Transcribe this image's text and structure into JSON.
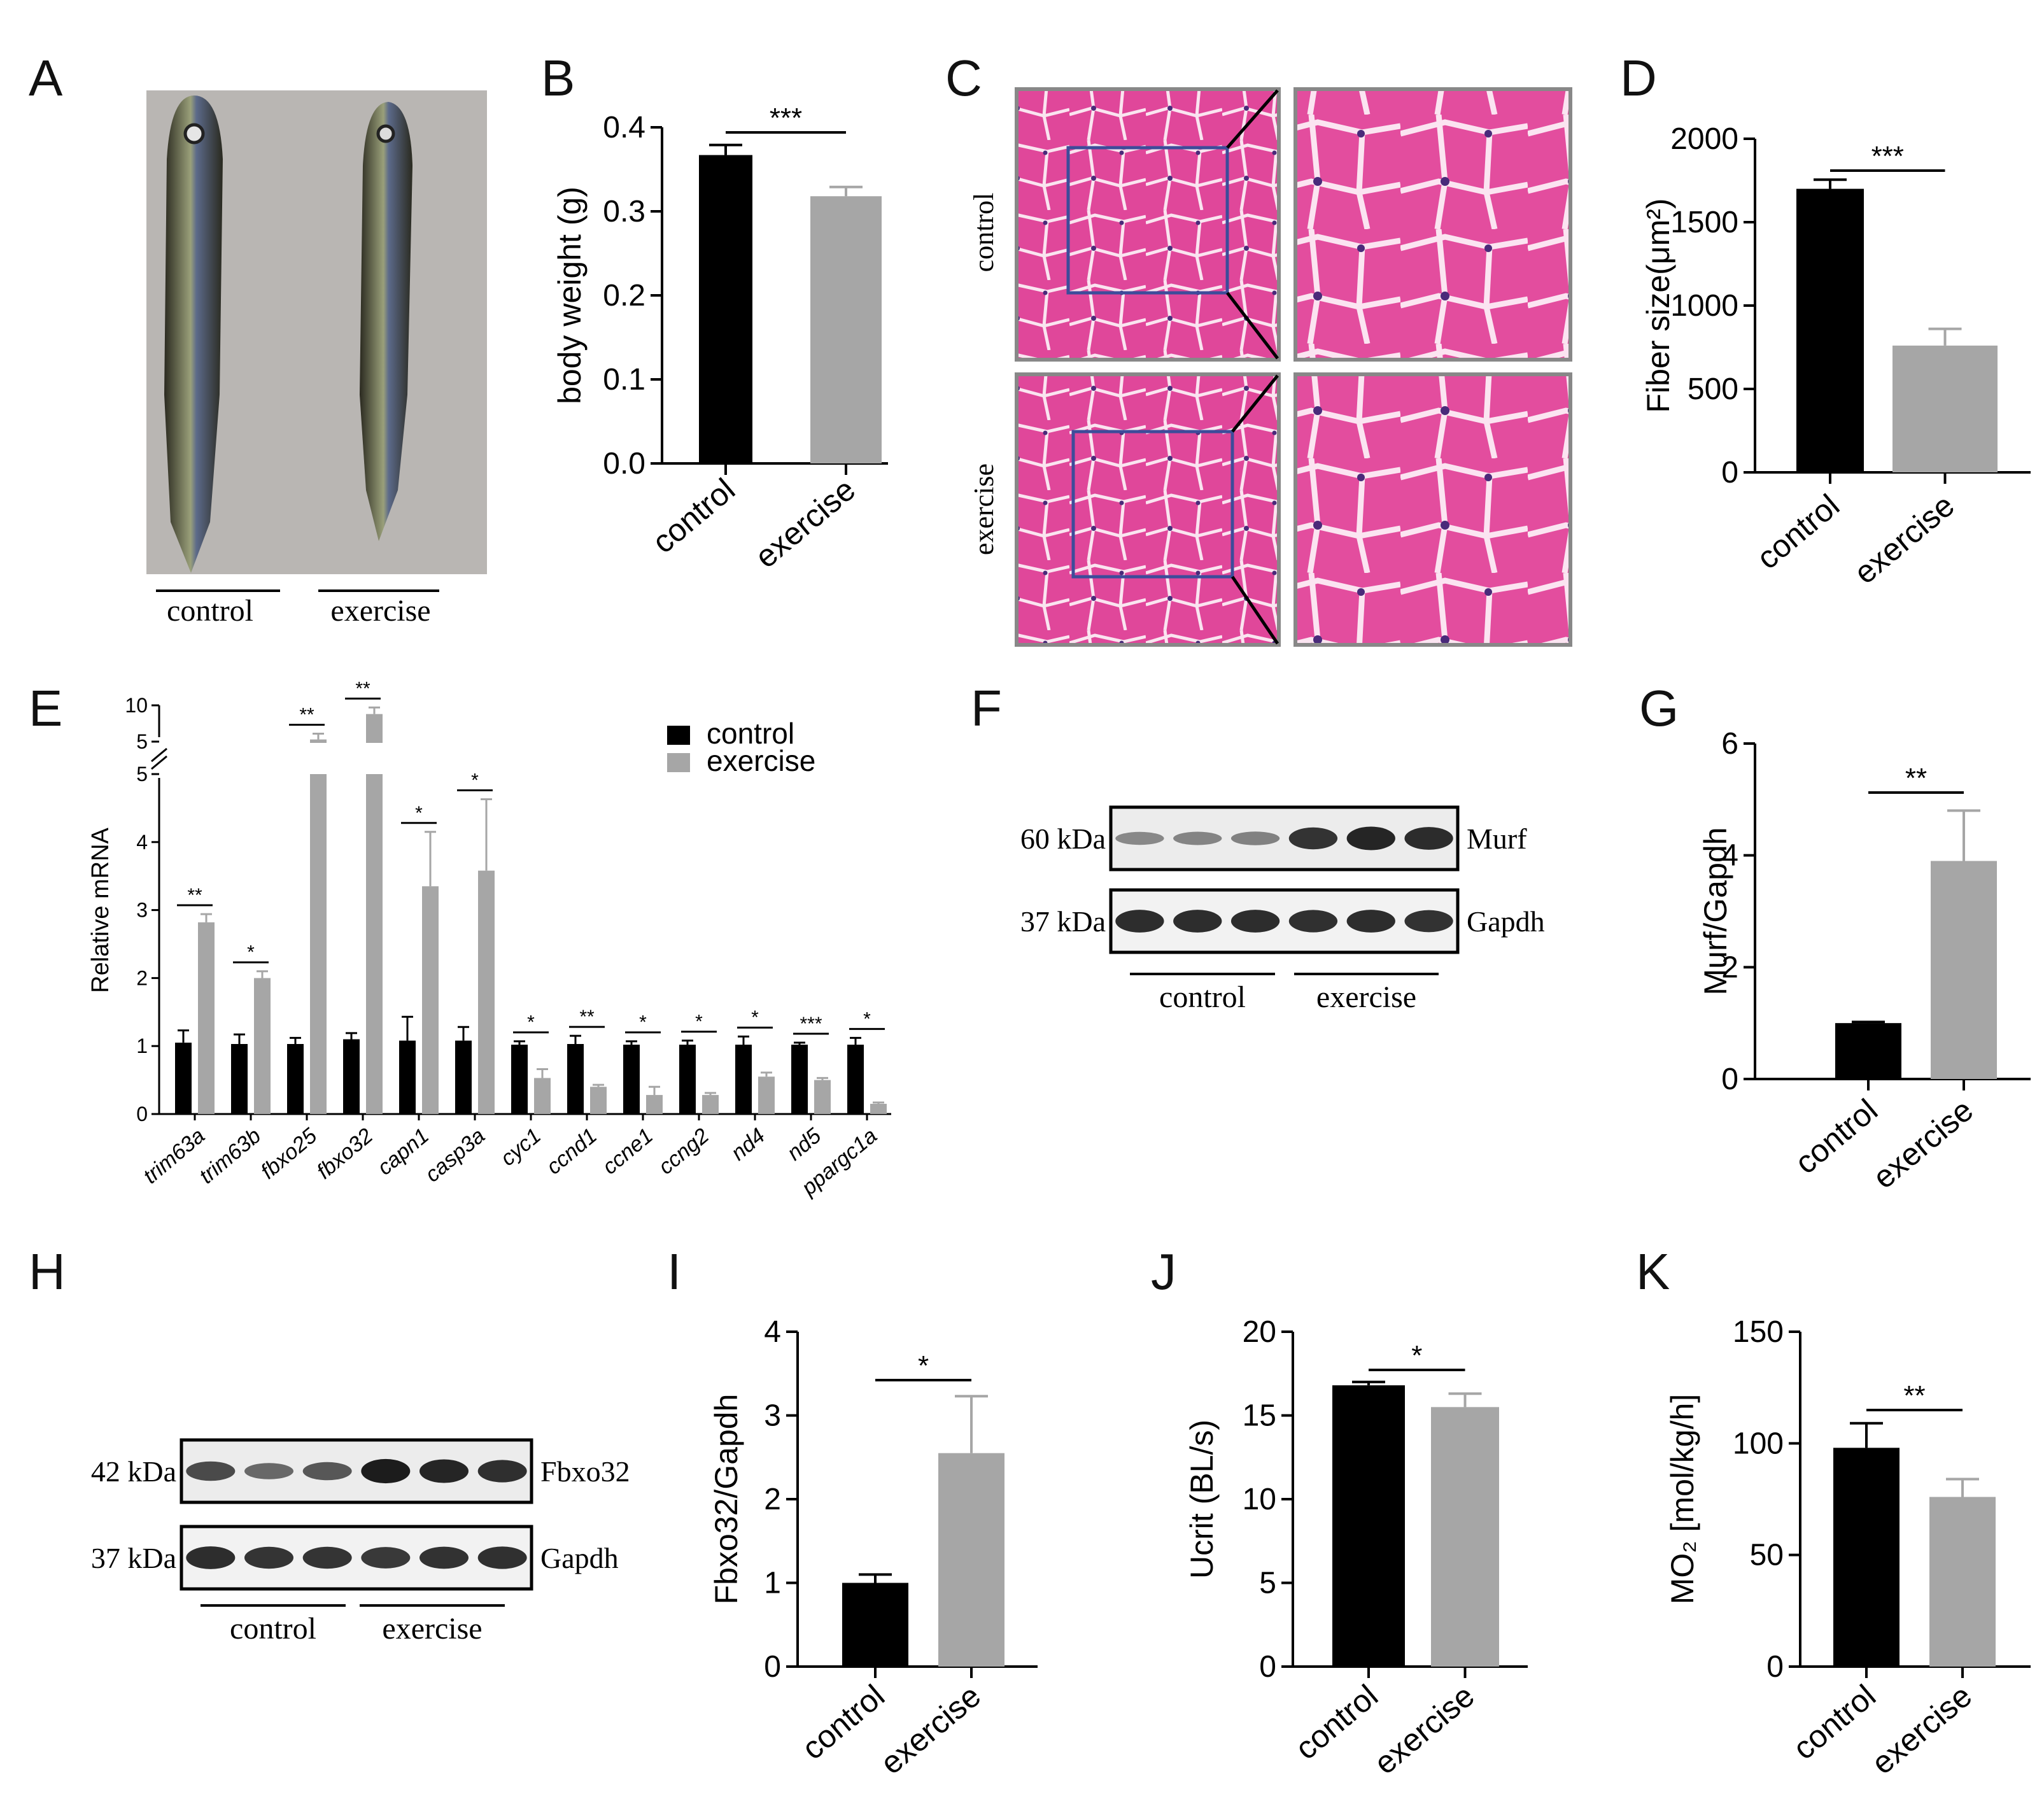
{
  "colors": {
    "control": "#000000",
    "exercise": "#a6a6a6",
    "he_pink": "#e0479a",
    "inset_box": "#3d4c9a"
  },
  "panel_letters": [
    "A",
    "B",
    "C",
    "D",
    "E",
    "F",
    "G",
    "H",
    "I",
    "J",
    "K"
  ],
  "panelA": {
    "labels": [
      "control",
      "exercise"
    ]
  },
  "panelC": {
    "rows": [
      "control",
      "exercise"
    ]
  },
  "blotF": {
    "markers": [
      "60 kDa",
      "37 kDa"
    ],
    "proteins": [
      "Murf",
      "Gapdh"
    ],
    "groups": [
      "control",
      "exercise"
    ],
    "bands_top": [
      0.3,
      0.32,
      0.34,
      0.85,
      0.95,
      0.9
    ],
    "bands_bottom": [
      0.9,
      0.9,
      0.9,
      0.88,
      0.9,
      0.86
    ]
  },
  "blotH": {
    "markers": [
      "42 kDa",
      "37 kDa"
    ],
    "proteins": [
      "Fbxo32",
      "Gapdh"
    ],
    "groups": [
      "control",
      "exercise"
    ],
    "bands_top": [
      0.7,
      0.5,
      0.62,
      1.0,
      0.95,
      0.88
    ],
    "bands_bottom": [
      0.9,
      0.85,
      0.85,
      0.82,
      0.86,
      0.88
    ]
  },
  "chart_data": [
    {
      "panel": "B",
      "type": "bar",
      "categories": [
        "control",
        "exercise"
      ],
      "values": [
        0.367,
        0.318
      ],
      "errors": [
        0.012,
        0.011
      ],
      "ylabel": "body weight (g)",
      "ylim": [
        0,
        0.4
      ],
      "yticks": [
        "0.0",
        "0.1",
        "0.2",
        "0.3",
        "0.4"
      ],
      "significance": "***"
    },
    {
      "panel": "D",
      "type": "bar",
      "categories": [
        "control",
        "exercise"
      ],
      "values": [
        1700,
        760
      ],
      "errors": [
        55,
        100
      ],
      "ylabel": "Fiber size(μm²)",
      "ylim": [
        0,
        2000
      ],
      "yticks": [
        "0",
        "500",
        "1000",
        "1500",
        "2000"
      ],
      "significance": "***"
    },
    {
      "panel": "E",
      "type": "bar",
      "ylabel": "Relative mRNA",
      "categories": [
        "trim63a",
        "trim63b",
        "fbxo25",
        "fbxo32",
        "capn1",
        "casp3a",
        "cyc1",
        "ccnd1",
        "ccne1",
        "ccng2",
        "nd4",
        "nd5",
        "ppargc1a"
      ],
      "series": [
        {
          "name": "control",
          "values": [
            1.05,
            1.03,
            1.03,
            1.1,
            1.08,
            1.08,
            1.02,
            1.03,
            1.02,
            1.02,
            1.02,
            1.02,
            1.02
          ],
          "errors": [
            0.18,
            0.14,
            0.09,
            0.09,
            0.35,
            0.2,
            0.05,
            0.12,
            0.05,
            0.06,
            0.12,
            0.03,
            0.1
          ]
        },
        {
          "name": "exercise",
          "values": [
            2.82,
            2.0,
            5.3,
            8.8,
            3.35,
            3.58,
            0.53,
            0.4,
            0.28,
            0.28,
            0.55,
            0.5,
            0.15
          ],
          "errors": [
            0.12,
            0.1,
            0.8,
            0.9,
            0.8,
            1.05,
            0.13,
            0.03,
            0.12,
            0.03,
            0.06,
            0.03,
            0.02
          ]
        }
      ],
      "yticks_lower": [
        "0",
        "1",
        "2",
        "3",
        "4",
        "5"
      ],
      "yticks_upper": [
        "5",
        "10"
      ],
      "significance": [
        "**",
        "*",
        "**",
        "**",
        "*",
        "*",
        "*",
        "**",
        "*",
        "*",
        "*",
        "***",
        "*"
      ],
      "legend": [
        "control",
        "exercise"
      ]
    },
    {
      "panel": "G",
      "type": "bar",
      "categories": [
        "control",
        "exercise"
      ],
      "values": [
        1.0,
        3.9
      ],
      "errors": [
        0.02,
        0.9
      ],
      "ylabel": "Murf/Gapdh",
      "ylim": [
        0,
        6
      ],
      "yticks": [
        "0",
        "2",
        "4",
        "6"
      ],
      "significance": "**"
    },
    {
      "panel": "I",
      "type": "bar",
      "categories": [
        "control",
        "exercise"
      ],
      "values": [
        1.0,
        2.55
      ],
      "errors": [
        0.1,
        0.68
      ],
      "ylabel": "Fbxo32/Gapdh",
      "ylim": [
        0,
        4
      ],
      "yticks": [
        "0",
        "1",
        "2",
        "3",
        "4"
      ],
      "significance": "*"
    },
    {
      "panel": "J",
      "type": "bar",
      "categories": [
        "control",
        "exercise"
      ],
      "values": [
        16.8,
        15.5
      ],
      "errors": [
        0.2,
        0.8
      ],
      "ylabel": "Ucrit (BL/s)",
      "ylim": [
        0,
        20
      ],
      "yticks": [
        "0",
        "5",
        "10",
        "15",
        "20"
      ],
      "significance": "*"
    },
    {
      "panel": "K",
      "type": "bar",
      "categories": [
        "control",
        "exercise"
      ],
      "values": [
        98,
        76
      ],
      "errors": [
        11,
        8
      ],
      "ylabel": "MO₂ [mol/kg/h]",
      "ylim": [
        0,
        150
      ],
      "yticks": [
        "0",
        "50",
        "100",
        "150"
      ],
      "significance": "**"
    }
  ]
}
